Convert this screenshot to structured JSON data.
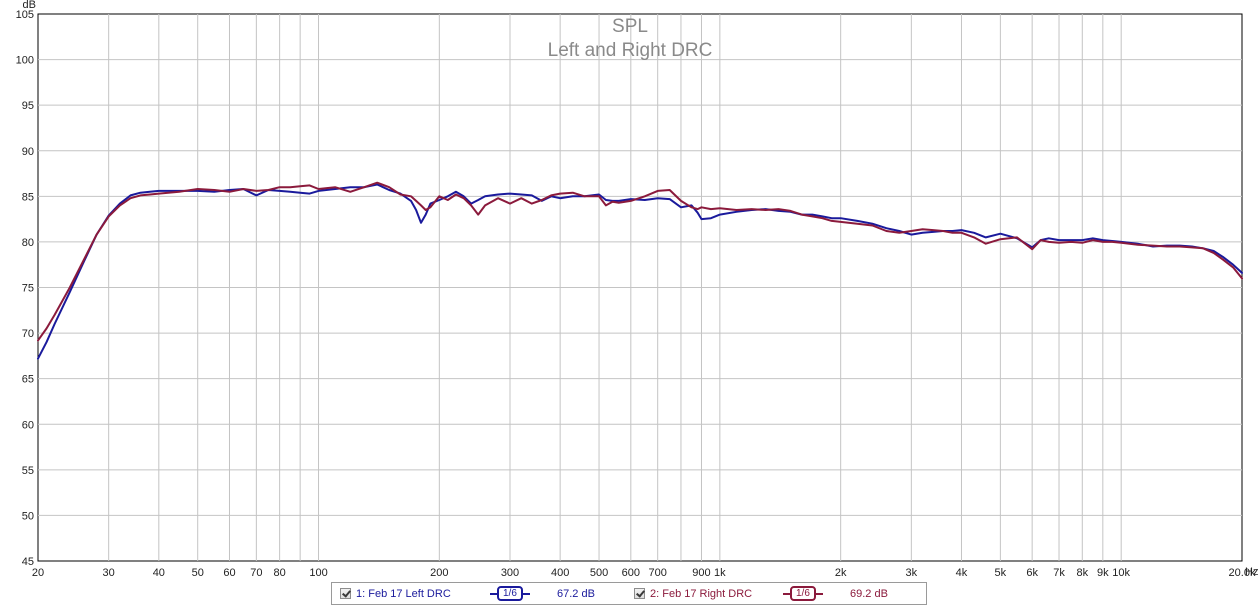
{
  "chart_data": {
    "type": "line",
    "title": "SPL",
    "subtitle": "Left and Right DRC",
    "y_unit": "dB",
    "x_unit": "Hz",
    "xscale": "log",
    "xlim": [
      20,
      20000
    ],
    "ylim": [
      45,
      105
    ],
    "grid": true,
    "y_ticks": [
      45,
      50,
      55,
      60,
      65,
      70,
      75,
      80,
      85,
      90,
      95,
      100,
      105
    ],
    "x_major": [
      20,
      30,
      40,
      50,
      60,
      70,
      80,
      100,
      200,
      300,
      400,
      500,
      600,
      700,
      900,
      1000,
      2000,
      3000,
      4000,
      5000,
      6000,
      7000,
      8000,
      9000,
      10000,
      20000
    ],
    "x_tick_labels": [
      {
        "v": 20,
        "t": "20"
      },
      {
        "v": 30,
        "t": "30"
      },
      {
        "v": 40,
        "t": "40"
      },
      {
        "v": 50,
        "t": "50"
      },
      {
        "v": 60,
        "t": "60"
      },
      {
        "v": 70,
        "t": "70"
      },
      {
        "v": 80,
        "t": "80"
      },
      {
        "v": 100,
        "t": "100"
      },
      {
        "v": 200,
        "t": "200"
      },
      {
        "v": 300,
        "t": "300"
      },
      {
        "v": 400,
        "t": "400"
      },
      {
        "v": 500,
        "t": "500"
      },
      {
        "v": 600,
        "t": "600"
      },
      {
        "v": 700,
        "t": "700"
      },
      {
        "v": 900,
        "t": "900"
      },
      {
        "v": 1000,
        "t": "1k"
      },
      {
        "v": 2000,
        "t": "2k"
      },
      {
        "v": 3000,
        "t": "3k"
      },
      {
        "v": 4000,
        "t": "4k"
      },
      {
        "v": 5000,
        "t": "5k"
      },
      {
        "v": 6000,
        "t": "6k"
      },
      {
        "v": 7000,
        "t": "7k"
      },
      {
        "v": 8000,
        "t": "8k"
      },
      {
        "v": 9000,
        "t": "9k"
      },
      {
        "v": 10000,
        "t": "10k"
      },
      {
        "v": 20000,
        "t": "20.0k"
      }
    ],
    "series": [
      {
        "name": "1: Feb 17 Left DRC",
        "color": "#1a1a9c",
        "x": [
          20,
          21,
          22,
          24,
          26,
          28,
          30,
          32,
          34,
          36,
          38,
          40,
          45,
          50,
          55,
          60,
          65,
          70,
          75,
          80,
          85,
          90,
          95,
          100,
          110,
          120,
          130,
          140,
          150,
          160,
          170,
          175,
          180,
          185,
          190,
          200,
          210,
          220,
          230,
          240,
          250,
          260,
          280,
          300,
          320,
          340,
          360,
          380,
          400,
          430,
          460,
          500,
          520,
          540,
          560,
          600,
          650,
          700,
          750,
          800,
          850,
          880,
          900,
          950,
          1000,
          1100,
          1200,
          1300,
          1400,
          1500,
          1600,
          1700,
          1800,
          1900,
          2000,
          2200,
          2400,
          2600,
          2800,
          3000,
          3200,
          3400,
          3600,
          3800,
          4000,
          4300,
          4600,
          5000,
          5500,
          6000,
          6300,
          6600,
          7000,
          7500,
          8000,
          8500,
          9000,
          9500,
          10000,
          11000,
          12000,
          13000,
          14000,
          15000,
          16000,
          17000,
          18000,
          19000,
          20000
        ],
        "y": [
          67.2,
          69.0,
          71.0,
          74.5,
          77.8,
          80.8,
          82.9,
          84.2,
          85.1,
          85.4,
          85.5,
          85.6,
          85.6,
          85.6,
          85.5,
          85.7,
          85.8,
          85.1,
          85.7,
          85.6,
          85.5,
          85.4,
          85.3,
          85.6,
          85.8,
          86.0,
          86.0,
          86.3,
          85.7,
          85.3,
          84.5,
          83.5,
          82.1,
          83.0,
          84.2,
          84.6,
          85.0,
          85.5,
          85.0,
          84.2,
          84.6,
          85.0,
          85.2,
          85.3,
          85.2,
          85.1,
          84.5,
          85.0,
          84.8,
          85.0,
          85.0,
          85.2,
          84.6,
          84.5,
          84.5,
          84.7,
          84.6,
          84.8,
          84.7,
          83.8,
          84.0,
          83.2,
          82.5,
          82.6,
          83.0,
          83.3,
          83.5,
          83.6,
          83.4,
          83.3,
          83.0,
          83.0,
          82.8,
          82.6,
          82.6,
          82.3,
          82.0,
          81.5,
          81.2,
          80.8,
          81.0,
          81.1,
          81.2,
          81.2,
          81.3,
          81.0,
          80.5,
          80.9,
          80.4,
          79.4,
          80.2,
          80.4,
          80.2,
          80.2,
          80.2,
          80.4,
          80.2,
          80.1,
          80.0,
          79.8,
          79.5,
          79.6,
          79.6,
          79.5,
          79.3,
          79.0,
          78.3,
          77.5,
          76.6
        ]
      },
      {
        "name": "2: Feb 17 Right DRC",
        "color": "#8b1a3c",
        "x": [
          20,
          21,
          22,
          24,
          26,
          28,
          30,
          32,
          34,
          36,
          38,
          40,
          45,
          50,
          55,
          60,
          65,
          70,
          75,
          80,
          85,
          90,
          95,
          100,
          110,
          120,
          130,
          140,
          150,
          160,
          170,
          175,
          180,
          185,
          190,
          200,
          210,
          220,
          230,
          240,
          250,
          260,
          280,
          300,
          320,
          340,
          360,
          380,
          400,
          430,
          460,
          500,
          520,
          540,
          560,
          600,
          650,
          700,
          750,
          800,
          850,
          880,
          900,
          950,
          1000,
          1100,
          1200,
          1300,
          1400,
          1500,
          1600,
          1700,
          1800,
          1900,
          2000,
          2200,
          2400,
          2600,
          2800,
          3000,
          3200,
          3400,
          3600,
          3800,
          4000,
          4300,
          4600,
          5000,
          5500,
          6000,
          6300,
          6600,
          7000,
          7500,
          8000,
          8500,
          9000,
          9500,
          10000,
          11000,
          12000,
          13000,
          14000,
          15000,
          16000,
          17000,
          18000,
          19000,
          20000
        ],
        "y": [
          69.2,
          70.5,
          72.0,
          75.0,
          78.0,
          80.8,
          82.8,
          84.0,
          84.8,
          85.1,
          85.2,
          85.3,
          85.5,
          85.8,
          85.7,
          85.5,
          85.8,
          85.6,
          85.7,
          86.0,
          86.0,
          86.1,
          86.2,
          85.8,
          86.0,
          85.5,
          86.0,
          86.5,
          86.0,
          85.2,
          85.0,
          84.5,
          84.0,
          83.5,
          83.8,
          85.0,
          84.6,
          85.2,
          84.8,
          84.0,
          83.0,
          84.0,
          84.8,
          84.2,
          84.8,
          84.2,
          84.6,
          85.1,
          85.3,
          85.4,
          85.0,
          85.0,
          84.0,
          84.4,
          84.3,
          84.5,
          85.0,
          85.6,
          85.7,
          84.5,
          83.8,
          83.6,
          83.8,
          83.6,
          83.7,
          83.5,
          83.6,
          83.5,
          83.6,
          83.4,
          83.0,
          82.8,
          82.6,
          82.3,
          82.2,
          82.0,
          81.8,
          81.2,
          81.0,
          81.2,
          81.4,
          81.3,
          81.2,
          81.0,
          81.0,
          80.5,
          79.8,
          80.3,
          80.5,
          79.2,
          80.2,
          80.0,
          79.9,
          80.0,
          79.9,
          80.2,
          80.0,
          80.0,
          79.9,
          79.7,
          79.6,
          79.5,
          79.5,
          79.4,
          79.3,
          78.8,
          78.0,
          77.2,
          76.0
        ]
      }
    ]
  },
  "legend": {
    "items": [
      {
        "label": "1: Feb 17 Left DRC",
        "smoothing": "1/6",
        "level": "67.2 dB",
        "color": "#1a1a9c"
      },
      {
        "label": "2: Feb 17 Right DRC",
        "smoothing": "1/6",
        "level": "69.2 dB",
        "color": "#8b1a3c"
      }
    ]
  }
}
